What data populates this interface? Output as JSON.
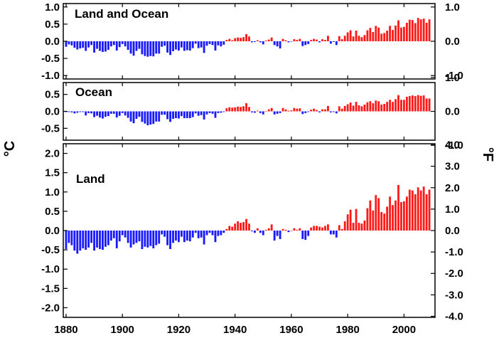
{
  "chart_data": [
    {
      "type": "bar",
      "title": "Land and Ocean",
      "left_unit": "°C",
      "right_unit": "°F",
      "x_start": 1880,
      "x_ticks": [
        1880,
        1900,
        1920,
        1940,
        1960,
        1980,
        2000
      ],
      "ylim": [
        -1.1,
        1.1
      ],
      "left_ticks": [
        {
          "value": 1.0,
          "label": "1.0"
        },
        {
          "value": 0.5,
          "label": "0.5"
        },
        {
          "value": 0.0,
          "label": "0.0"
        },
        {
          "value": -0.5,
          "label": "-0.5"
        },
        {
          "value": -1.0,
          "label": "-1.0"
        }
      ],
      "right_ticks": [
        {
          "value": 1.0,
          "label": "1.0"
        },
        {
          "value": 0.0,
          "label": "0.0"
        },
        {
          "value": -1.0,
          "label": "-1.0"
        }
      ],
      "colors": {
        "positive": "#ff1a1a",
        "negative": "#1a1aff"
      },
      "values": [
        -0.16,
        -0.09,
        -0.12,
        -0.19,
        -0.24,
        -0.21,
        -0.19,
        -0.28,
        -0.18,
        -0.11,
        -0.33,
        -0.22,
        -0.28,
        -0.31,
        -0.3,
        -0.25,
        -0.15,
        -0.11,
        -0.27,
        -0.17,
        -0.08,
        -0.15,
        -0.25,
        -0.36,
        -0.42,
        -0.28,
        -0.22,
        -0.38,
        -0.43,
        -0.45,
        -0.43,
        -0.44,
        -0.36,
        -0.36,
        -0.16,
        -0.13,
        -0.33,
        -0.4,
        -0.29,
        -0.24,
        -0.27,
        -0.18,
        -0.28,
        -0.26,
        -0.27,
        -0.2,
        -0.07,
        -0.2,
        -0.18,
        -0.34,
        -0.13,
        -0.08,
        -0.11,
        -0.27,
        -0.12,
        -0.15,
        -0.1,
        0.04,
        0.07,
        0.03,
        0.09,
        0.11,
        0.1,
        0.12,
        0.21,
        0.14,
        -0.03,
        -0.02,
        0.03,
        -0.03,
        -0.09,
        0.02,
        0.05,
        0.11,
        -0.11,
        -0.15,
        -0.21,
        0.07,
        0.03,
        -0.03,
        -0.01,
        0.06,
        0.04,
        0.07,
        -0.14,
        -0.11,
        -0.08,
        0.04,
        0.07,
        0.05,
        -0.03,
        0.06,
        0.04,
        0.16,
        -0.07,
        -0.02,
        -0.11,
        0.15,
        0.06,
        0.16,
        0.26,
        0.32,
        0.14,
        0.31,
        0.16,
        0.12,
        0.18,
        0.32,
        0.39,
        0.27,
        0.45,
        0.4,
        0.22,
        0.24,
        0.31,
        0.45,
        0.33,
        0.46,
        0.61,
        0.4,
        0.42,
        0.54,
        0.63,
        0.62,
        0.53,
        0.68,
        0.64,
        0.66,
        0.54,
        0.64
      ]
    },
    {
      "type": "bar",
      "title": "Ocean",
      "left_unit": "°C",
      "right_unit": "°F",
      "x_start": 1880,
      "x_ticks": [
        1880,
        1900,
        1920,
        1940,
        1960,
        1980,
        2000
      ],
      "ylim": [
        -0.85,
        0.85
      ],
      "left_ticks": [
        {
          "value": 0.5,
          "label": "0.5"
        },
        {
          "value": 0.0,
          "label": "0.0"
        },
        {
          "value": -0.5,
          "label": "-0.5"
        }
      ],
      "right_ticks": [
        {
          "value": 1.0,
          "label": "1.0"
        },
        {
          "value": 0.0,
          "label": "0.0"
        },
        {
          "value": -1.0,
          "label": "-1.0"
        }
      ],
      "colors": {
        "positive": "#ff1a1a",
        "negative": "#1a1aff"
      },
      "values": [
        -0.02,
        -0.02,
        -0.03,
        -0.06,
        -0.04,
        -0.02,
        -0.02,
        -0.12,
        -0.05,
        -0.06,
        -0.17,
        -0.13,
        -0.18,
        -0.21,
        -0.16,
        -0.14,
        -0.07,
        -0.07,
        -0.18,
        -0.13,
        -0.05,
        -0.12,
        -0.19,
        -0.3,
        -0.35,
        -0.22,
        -0.16,
        -0.31,
        -0.36,
        -0.41,
        -0.39,
        -0.37,
        -0.3,
        -0.3,
        -0.1,
        -0.1,
        -0.23,
        -0.31,
        -0.22,
        -0.2,
        -0.21,
        -0.14,
        -0.2,
        -0.2,
        -0.2,
        -0.17,
        -0.06,
        -0.13,
        -0.11,
        -0.24,
        -0.09,
        -0.05,
        -0.07,
        -0.19,
        -0.05,
        -0.04,
        -0.02,
        0.09,
        0.12,
        0.11,
        0.12,
        0.14,
        0.13,
        0.15,
        0.24,
        0.13,
        -0.03,
        -0.04,
        0.02,
        -0.05,
        -0.09,
        0.01,
        0.06,
        0.1,
        -0.09,
        -0.07,
        -0.05,
        0.1,
        0.06,
        0.02,
        0.03,
        0.1,
        0.08,
        0.09,
        -0.08,
        -0.05,
        -0.02,
        0.05,
        0.08,
        0.04,
        -0.03,
        0.06,
        0.06,
        0.16,
        -0.03,
        -0.02,
        -0.06,
        0.15,
        0.08,
        0.16,
        0.21,
        0.26,
        0.17,
        0.28,
        0.18,
        0.15,
        0.2,
        0.27,
        0.3,
        0.24,
        0.32,
        0.3,
        0.2,
        0.22,
        0.28,
        0.34,
        0.28,
        0.36,
        0.48,
        0.34,
        0.34,
        0.43,
        0.45,
        0.47,
        0.45,
        0.48,
        0.46,
        0.47,
        0.38,
        0.38
      ]
    },
    {
      "type": "bar",
      "title": "Land",
      "left_unit": "°C",
      "right_unit": "°F",
      "x_start": 1880,
      "x_ticks": [
        1880,
        1900,
        1920,
        1940,
        1960,
        1980,
        2000
      ],
      "xlim": [
        1879,
        2011
      ],
      "ylim": [
        -2.25,
        2.25
      ],
      "left_ticks": [
        {
          "value": 2.0,
          "label": "2.0"
        },
        {
          "value": 1.5,
          "label": "1.5"
        },
        {
          "value": 1.0,
          "label": "1.0"
        },
        {
          "value": 0.5,
          "label": "0.5"
        },
        {
          "value": 0.0,
          "label": "0.0"
        },
        {
          "value": -0.5,
          "label": "-0.5"
        },
        {
          "value": -1.0,
          "label": "-1.0"
        },
        {
          "value": -1.5,
          "label": "-1.5"
        },
        {
          "value": -2.0,
          "label": "-2.0"
        }
      ],
      "right_ticks": [
        {
          "value": 2.222,
          "label": "4.0"
        },
        {
          "value": 1.667,
          "label": "3.0"
        },
        {
          "value": 1.111,
          "label": "2.0"
        },
        {
          "value": 0.556,
          "label": "1.0"
        },
        {
          "value": 0.0,
          "label": "0.0"
        },
        {
          "value": -0.556,
          "label": "-1.0"
        },
        {
          "value": -1.111,
          "label": "-2.0"
        },
        {
          "value": -1.667,
          "label": "-3.0"
        },
        {
          "value": -2.222,
          "label": "-4.0"
        }
      ],
      "colors": {
        "positive": "#ff1a1a",
        "negative": "#1a1aff"
      },
      "values": [
        -0.48,
        -0.32,
        -0.38,
        -0.52,
        -0.6,
        -0.52,
        -0.46,
        -0.5,
        -0.44,
        -0.32,
        -0.52,
        -0.44,
        -0.48,
        -0.5,
        -0.42,
        -0.38,
        -0.26,
        -0.2,
        -0.46,
        -0.28,
        -0.12,
        -0.18,
        -0.32,
        -0.44,
        -0.36,
        -0.32,
        -0.28,
        -0.48,
        -0.42,
        -0.44,
        -0.4,
        -0.46,
        -0.38,
        -0.34,
        -0.1,
        -0.16,
        -0.38,
        -0.48,
        -0.32,
        -0.26,
        -0.3,
        -0.16,
        -0.3,
        -0.26,
        -0.28,
        -0.18,
        -0.06,
        -0.2,
        -0.18,
        -0.36,
        -0.12,
        -0.06,
        -0.12,
        -0.3,
        -0.14,
        -0.12,
        -0.06,
        0.04,
        0.12,
        0.1,
        0.18,
        0.24,
        0.2,
        0.22,
        0.3,
        0.18,
        -0.02,
        -0.06,
        0.06,
        -0.06,
        -0.12,
        0.02,
        0.06,
        0.16,
        -0.26,
        -0.14,
        -0.22,
        0.04,
        0.02,
        -0.04,
        0.0,
        0.06,
        0.02,
        0.06,
        -0.22,
        -0.24,
        -0.14,
        0.08,
        0.12,
        0.12,
        0.1,
        0.08,
        0.12,
        0.16,
        -0.1,
        -0.1,
        -0.18,
        0.14,
        0.04,
        0.24,
        0.42,
        0.54,
        0.2,
        0.56,
        0.2,
        0.18,
        0.26,
        0.58,
        0.78,
        0.52,
        0.92,
        0.84,
        0.48,
        0.44,
        0.62,
        0.88,
        0.66,
        0.78,
        1.18,
        0.74,
        0.76,
        0.88,
        1.06,
        1.04,
        0.94,
        1.12,
        1.04,
        1.14,
        0.94,
        1.06
      ]
    }
  ]
}
